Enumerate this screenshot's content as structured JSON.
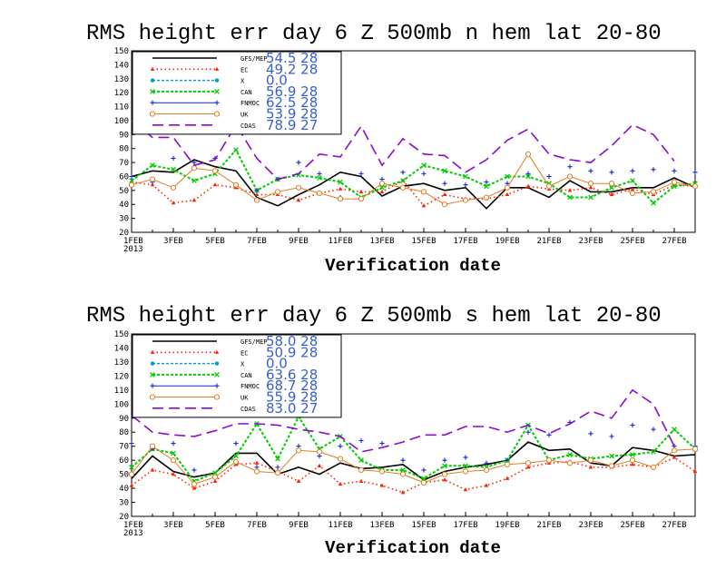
{
  "chart_data": [
    {
      "type": "line",
      "title": "RMS height err   day 6  Z 500mb  n hem  lat 20-80",
      "xlabel": "Verification date",
      "ylabel": "",
      "ylim": [
        20,
        150
      ],
      "yticks": [
        20,
        30,
        40,
        50,
        60,
        70,
        80,
        90,
        100,
        110,
        120,
        130,
        140,
        150
      ],
      "x_tick_labels": [
        "1FEB\n2013",
        "3FEB",
        "5FEB",
        "7FEB",
        "9FEB",
        "11FEB",
        "13FEB",
        "15FEB",
        "17FEB",
        "19FEB",
        "21FEB",
        "23FEB",
        "25FEB",
        "27FEB"
      ],
      "x_days": [
        1,
        2,
        3,
        4,
        5,
        6,
        7,
        8,
        9,
        10,
        11,
        12,
        13,
        14,
        15,
        16,
        17,
        18,
        19,
        20,
        21,
        22,
        23,
        24,
        25,
        26,
        27,
        28
      ],
      "series": [
        {
          "name": "GFS/MEP",
          "stat": "54.5  28",
          "color": "#000000",
          "values": [
            60,
            64,
            63,
            72,
            67,
            64,
            45,
            39,
            47,
            54,
            63,
            60,
            46,
            53,
            55,
            50,
            52,
            37,
            52,
            52,
            45,
            57,
            49,
            49,
            52,
            52,
            59,
            52
          ]
        },
        {
          "name": "EC",
          "stat": "49.2  28",
          "color": "#ff2200",
          "values": [
            56,
            54,
            41,
            43,
            54,
            52,
            47,
            47,
            43,
            48,
            51,
            49,
            49,
            57,
            39,
            47,
            44,
            44,
            47,
            53,
            51,
            50,
            52,
            47,
            51,
            47,
            54,
            53
          ]
        },
        {
          "name": "X",
          "stat": "0.0",
          "color": "#009bd8",
          "values": []
        },
        {
          "name": "CAN",
          "stat": "56.9  28",
          "color": "#00cc00",
          "values": [
            57,
            68,
            65,
            57,
            62,
            79,
            50,
            58,
            61,
            59,
            56,
            45,
            52,
            57,
            68,
            64,
            60,
            53,
            60,
            60,
            55,
            45,
            45,
            52,
            57,
            41,
            53,
            55
          ]
        },
        {
          "name": "FNMOC",
          "stat": "62.5  28",
          "color": "#1428d8",
          "values": [
            60,
            56,
            73,
            70,
            73,
            93,
            50,
            58,
            70,
            62,
            45,
            62,
            58,
            63,
            62,
            55,
            54,
            56,
            55,
            62,
            60,
            67,
            64,
            63,
            64,
            65,
            64,
            63
          ]
        },
        {
          "name": "UK",
          "stat": "53.9  28",
          "color": "#e07f27",
          "values": [
            54,
            58,
            52,
            66,
            64,
            54,
            43,
            49,
            52,
            48,
            44,
            44,
            55,
            52,
            49,
            40,
            43,
            45,
            52,
            76,
            53,
            60,
            55,
            55,
            48,
            49,
            56,
            53
          ]
        },
        {
          "name": "CDAS",
          "stat": "78.9  27",
          "color": "#8c0acf",
          "values": [
            100,
            88,
            88,
            68,
            72,
            97,
            73,
            58,
            62,
            76,
            74,
            96,
            68,
            87,
            76,
            75,
            63,
            72,
            86,
            94,
            76,
            72,
            70,
            82,
            97,
            90,
            71,
            null
          ]
        }
      ]
    },
    {
      "type": "line",
      "title": "RMS height err   day 6  Z 500mb  s hem  lat 20-80",
      "xlabel": "Verification date",
      "ylabel": "",
      "ylim": [
        20,
        150
      ],
      "yticks": [
        20,
        30,
        40,
        50,
        60,
        70,
        80,
        90,
        100,
        110,
        120,
        130,
        140,
        150
      ],
      "x_tick_labels": [
        "1FEB\n2013",
        "3FEB",
        "5FEB",
        "7FEB",
        "9FEB",
        "11FEB",
        "13FEB",
        "15FEB",
        "17FEB",
        "19FEB",
        "21FEB",
        "23FEB",
        "25FEB",
        "27FEB"
      ],
      "x_days": [
        1,
        2,
        3,
        4,
        5,
        6,
        7,
        8,
        9,
        10,
        11,
        12,
        13,
        14,
        15,
        16,
        17,
        18,
        19,
        20,
        21,
        22,
        23,
        24,
        25,
        26,
        27,
        28
      ],
      "series": [
        {
          "name": "GFS/MEP",
          "stat": "58.0  28",
          "color": "#000000",
          "values": [
            47,
            63,
            52,
            48,
            51,
            65,
            65,
            50,
            55,
            50,
            58,
            54,
            55,
            57,
            46,
            52,
            55,
            57,
            60,
            73,
            67,
            68,
            58,
            56,
            69,
            67,
            63,
            64
          ]
        },
        {
          "name": "EC",
          "stat": "50.9  28",
          "color": "#ff2200",
          "values": [
            42,
            53,
            50,
            40,
            45,
            57,
            58,
            52,
            45,
            56,
            43,
            45,
            42,
            37,
            44,
            46,
            39,
            42,
            47,
            55,
            58,
            59,
            55,
            55,
            57,
            55,
            62,
            52
          ]
        },
        {
          "name": "X",
          "stat": "0.0",
          "color": "#009bd8",
          "values": []
        },
        {
          "name": "CAN",
          "stat": "63.6  28",
          "color": "#00cc00",
          "values": [
            55,
            68,
            65,
            45,
            51,
            63,
            86,
            61,
            91,
            68,
            77,
            60,
            53,
            53,
            47,
            56,
            56,
            55,
            60,
            85,
            60,
            64,
            61,
            63,
            64,
            66,
            82,
            68
          ]
        },
        {
          "name": "FNMOC",
          "stat": "68.7  28",
          "color": "#1428d8",
          "values": [
            72,
            68,
            72,
            53,
            48,
            72,
            55,
            55,
            70,
            63,
            70,
            74,
            72,
            60,
            53,
            60,
            62,
            58,
            60,
            80,
            78,
            87,
            79,
            77,
            85,
            82,
            70,
            70
          ]
        },
        {
          "name": "UK",
          "stat": "55.9  28",
          "color": "#e07f27",
          "values": [
            50,
            70,
            60,
            43,
            48,
            59,
            52,
            51,
            67,
            66,
            61,
            53,
            52,
            50,
            44,
            50,
            52,
            53,
            57,
            58,
            60,
            58,
            60,
            56,
            60,
            55,
            67,
            68
          ]
        },
        {
          "name": "CDAS",
          "stat": "83.0  27",
          "color": "#8c0acf",
          "values": [
            92,
            80,
            78,
            77,
            81,
            86,
            86,
            85,
            82,
            80,
            77,
            66,
            69,
            73,
            78,
            78,
            84,
            84,
            80,
            85,
            79,
            86,
            95,
            90,
            110,
            100,
            70,
            null
          ]
        }
      ]
    }
  ]
}
